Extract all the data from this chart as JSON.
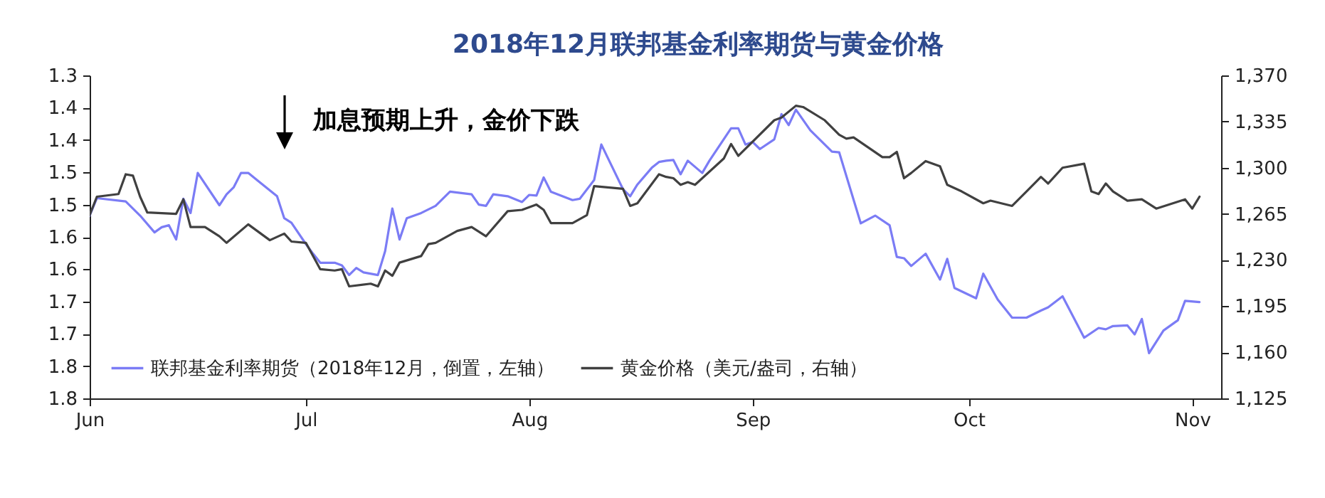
{
  "chart_data": {
    "type": "line",
    "title": "2018年12月联邦基金利率期货与黄金价格",
    "annotations": [
      "加息预期上升，金价下跌"
    ],
    "xlim": [
      "2018-06-01",
      "2018-11-05"
    ],
    "xticks": [
      {
        "value": "2018-06-01",
        "label": "Jun"
      },
      {
        "value": "2018-07-01",
        "label": "Jul"
      },
      {
        "value": "2018-08-01",
        "label": "Aug"
      },
      {
        "value": "2018-09-01",
        "label": "Sep"
      },
      {
        "value": "2018-10-01",
        "label": "Oct"
      },
      {
        "value": "2018-11-01",
        "label": "Nov"
      }
    ],
    "ylim": [
      1.8,
      1.3
    ],
    "yticks": [
      {
        "value": 1.3,
        "label": "1.3"
      },
      {
        "value": 1.35,
        "label": "1.4"
      },
      {
        "value": 1.4,
        "label": "1.4"
      },
      {
        "value": 1.45,
        "label": "1.5"
      },
      {
        "value": 1.5,
        "label": "1.5"
      },
      {
        "value": 1.55,
        "label": "1.6"
      },
      {
        "value": 1.6,
        "label": "1.6"
      },
      {
        "value": 1.65,
        "label": "1.7"
      },
      {
        "value": 1.7,
        "label": "1.7"
      },
      {
        "value": 1.75,
        "label": "1.8"
      },
      {
        "value": 1.8,
        "label": "1.8"
      }
    ],
    "y2lim": [
      1125,
      1370
    ],
    "y2ticks": [
      {
        "value": 1125,
        "label": "1,125"
      },
      {
        "value": 1160,
        "label": "1,160"
      },
      {
        "value": 1195,
        "label": "1,195"
      },
      {
        "value": 1230,
        "label": "1,230"
      },
      {
        "value": 1265,
        "label": "1,265"
      },
      {
        "value": 1300,
        "label": "1,300"
      },
      {
        "value": 1335,
        "label": "1,335"
      },
      {
        "value": 1370,
        "label": "1,370"
      }
    ],
    "legend": "bottom left",
    "grid": false,
    "marker": "none",
    "line_style": "solid",
    "series": [
      {
        "name": "联邦基金利率期货（2018年12月，倒置，左轴）",
        "color": "#7b7cf5",
        "axis": "y",
        "x": [
          "2018-06-01",
          "2018-06-02",
          "2018-06-06",
          "2018-06-08",
          "2018-06-10",
          "2018-06-11",
          "2018-06-12",
          "2018-06-13",
          "2018-06-14",
          "2018-06-15",
          "2018-06-16",
          "2018-06-19",
          "2018-06-20",
          "2018-06-21",
          "2018-06-22",
          "2018-06-23",
          "2018-06-27",
          "2018-06-28",
          "2018-06-29",
          "2018-07-01",
          "2018-07-02",
          "2018-07-03",
          "2018-07-05",
          "2018-07-06",
          "2018-07-07",
          "2018-07-08",
          "2018-07-09",
          "2018-07-11",
          "2018-07-12",
          "2018-07-13",
          "2018-07-14",
          "2018-07-15",
          "2018-07-17",
          "2018-07-19",
          "2018-07-21",
          "2018-07-24",
          "2018-07-25",
          "2018-07-26",
          "2018-07-27",
          "2018-07-29",
          "2018-07-31",
          "2018-08-01",
          "2018-08-02",
          "2018-08-03",
          "2018-08-04",
          "2018-08-07",
          "2018-08-08",
          "2018-08-10",
          "2018-08-11",
          "2018-08-14",
          "2018-08-15",
          "2018-08-16",
          "2018-08-18",
          "2018-08-19",
          "2018-08-20",
          "2018-08-21",
          "2018-08-22",
          "2018-08-23",
          "2018-08-25",
          "2018-08-26",
          "2018-08-29",
          "2018-08-30",
          "2018-08-31",
          "2018-09-01",
          "2018-09-02",
          "2018-09-04",
          "2018-09-05",
          "2018-09-06",
          "2018-09-07",
          "2018-09-09",
          "2018-09-12",
          "2018-09-13",
          "2018-09-16",
          "2018-09-18",
          "2018-09-20",
          "2018-09-21",
          "2018-09-22",
          "2018-09-23",
          "2018-09-25",
          "2018-09-27",
          "2018-09-28",
          "2018-09-29",
          "2018-10-02",
          "2018-10-03",
          "2018-10-05",
          "2018-10-07",
          "2018-10-09",
          "2018-10-11",
          "2018-10-12",
          "2018-10-14",
          "2018-10-17",
          "2018-10-19",
          "2018-10-20",
          "2018-10-21",
          "2018-10-23",
          "2018-10-24",
          "2018-10-25",
          "2018-10-26",
          "2018-10-28",
          "2018-10-30",
          "2018-10-31",
          "2018-11-02"
        ],
        "values": [
          1.517,
          1.49,
          1.495,
          1.517,
          1.543,
          1.535,
          1.532,
          1.554,
          1.491,
          1.513,
          1.451,
          1.501,
          1.484,
          1.473,
          1.451,
          1.451,
          1.487,
          1.521,
          1.528,
          1.561,
          1.576,
          1.59,
          1.59,
          1.594,
          1.609,
          1.598,
          1.605,
          1.609,
          1.572,
          1.506,
          1.554,
          1.521,
          1.513,
          1.502,
          1.48,
          1.484,
          1.5,
          1.502,
          1.484,
          1.487,
          1.496,
          1.485,
          1.486,
          1.458,
          1.48,
          1.493,
          1.491,
          1.462,
          1.407,
          1.476,
          1.487,
          1.469,
          1.443,
          1.434,
          1.432,
          1.431,
          1.453,
          1.432,
          1.451,
          1.432,
          1.382,
          1.382,
          1.407,
          1.403,
          1.414,
          1.399,
          1.36,
          1.377,
          1.353,
          1.385,
          1.418,
          1.419,
          1.529,
          1.517,
          1.532,
          1.581,
          1.583,
          1.595,
          1.576,
          1.616,
          1.584,
          1.629,
          1.645,
          1.607,
          1.647,
          1.675,
          1.675,
          1.664,
          1.659,
          1.642,
          1.706,
          1.691,
          1.693,
          1.688,
          1.687,
          1.701,
          1.677,
          1.73,
          1.695,
          1.679,
          1.649,
          1.651
        ]
      },
      {
        "name": "黄金价格（美元/盎司，右轴）",
        "color": "#404040",
        "axis": "y2",
        "x": [
          "2018-06-01",
          "2018-06-02",
          "2018-06-05",
          "2018-06-06",
          "2018-06-07",
          "2018-06-08",
          "2018-06-09",
          "2018-06-13",
          "2018-06-14",
          "2018-06-15",
          "2018-06-17",
          "2018-06-19",
          "2018-06-20",
          "2018-06-23",
          "2018-06-26",
          "2018-06-28",
          "2018-06-29",
          "2018-07-01",
          "2018-07-03",
          "2018-07-05",
          "2018-07-06",
          "2018-07-07",
          "2018-07-10",
          "2018-07-11",
          "2018-07-12",
          "2018-07-13",
          "2018-07-14",
          "2018-07-17",
          "2018-07-18",
          "2018-07-19",
          "2018-07-22",
          "2018-07-24",
          "2018-07-26",
          "2018-07-29",
          "2018-07-31",
          "2018-08-02",
          "2018-08-03",
          "2018-08-04",
          "2018-08-07",
          "2018-08-09",
          "2018-08-10",
          "2018-08-14",
          "2018-08-15",
          "2018-08-16",
          "2018-08-19",
          "2018-08-20",
          "2018-08-21",
          "2018-08-22",
          "2018-08-23",
          "2018-08-24",
          "2018-08-28",
          "2018-08-29",
          "2018-08-30",
          "2018-09-04",
          "2018-09-05",
          "2018-09-07",
          "2018-09-08",
          "2018-09-11",
          "2018-09-13",
          "2018-09-14",
          "2018-09-15",
          "2018-09-19",
          "2018-09-20",
          "2018-09-21",
          "2018-09-22",
          "2018-09-23",
          "2018-09-25",
          "2018-09-27",
          "2018-09-28",
          "2018-09-30",
          "2018-10-03",
          "2018-10-04",
          "2018-10-07",
          "2018-10-09",
          "2018-10-11",
          "2018-10-12",
          "2018-10-14",
          "2018-10-17",
          "2018-10-18",
          "2018-10-19",
          "2018-10-20",
          "2018-10-21",
          "2018-10-23",
          "2018-10-25",
          "2018-10-27",
          "2018-10-31",
          "2018-11-01",
          "2018-11-02"
        ],
        "values": [
          1264,
          1278,
          1280,
          1295,
          1294,
          1278,
          1266,
          1265,
          1276,
          1255,
          1255,
          1248,
          1243,
          1257,
          1245,
          1250,
          1244,
          1243,
          1223,
          1222,
          1223,
          1210,
          1212,
          1210,
          1222,
          1218,
          1228,
          1233,
          1242,
          1243,
          1252,
          1255,
          1248,
          1267,
          1268,
          1272,
          1268,
          1258,
          1258,
          1264,
          1286,
          1284,
          1271,
          1273,
          1295,
          1293,
          1292,
          1287,
          1289,
          1287,
          1307,
          1318,
          1309,
          1336,
          1338,
          1347,
          1346,
          1336,
          1325,
          1322,
          1323,
          1308,
          1308,
          1312,
          1292,
          1296,
          1305,
          1301,
          1287,
          1282,
          1273,
          1275,
          1271,
          1282,
          1293,
          1288,
          1300,
          1303,
          1282,
          1280,
          1288,
          1282,
          1275,
          1276,
          1269,
          1276,
          1269,
          1278
        ]
      }
    ]
  }
}
